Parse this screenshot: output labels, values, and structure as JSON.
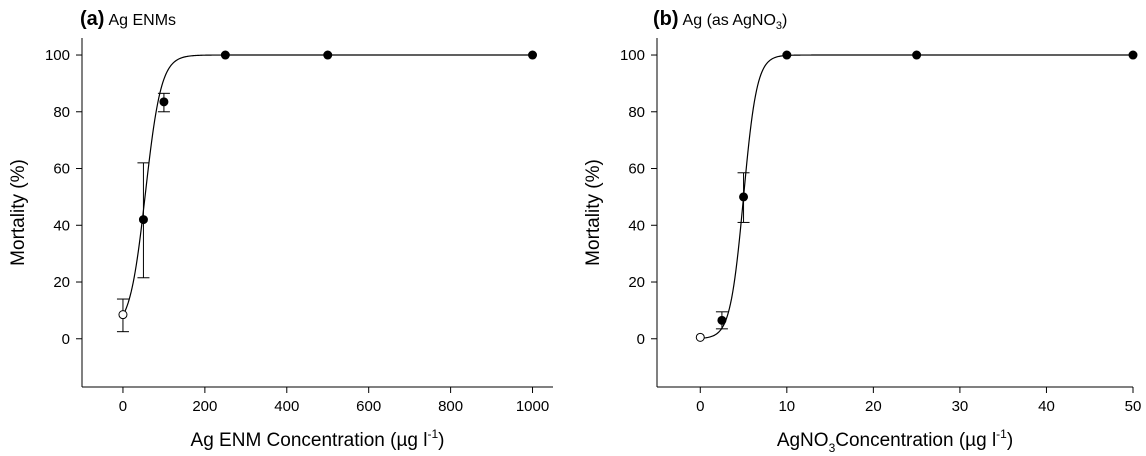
{
  "panels": [
    {
      "letter": "(a)",
      "subtitle": "Ag ENMs"
    },
    {
      "letter": "(b)",
      "subtitle": "Ag (as AgNO",
      "subtitle_sub": "3",
      "subtitle_end": ")"
    }
  ],
  "chart_data": [
    {
      "type": "scatter",
      "title": "(a) Ag ENMs",
      "xlabel": "Ag ENM Concentration (µg l-1)",
      "ylabel": "Mortality (%)",
      "xlim": [
        -100,
        1050
      ],
      "ylim": [
        -17,
        106
      ],
      "xticks": [
        "0",
        "200",
        "400",
        "600",
        "800",
        "1000"
      ],
      "yticks": [
        "0",
        "20",
        "40",
        "60",
        "80",
        "100"
      ],
      "grid": false,
      "points": [
        {
          "x": 0,
          "y": 8.5,
          "err_low": 6,
          "err_high": 5.5,
          "marker": "open"
        },
        {
          "x": 50,
          "y": 42,
          "err_low": 20.5,
          "err_high": 20,
          "marker": "filled"
        },
        {
          "x": 100,
          "y": 83.5,
          "err_low": 3.5,
          "err_high": 3,
          "marker": "filled"
        },
        {
          "x": 250,
          "y": 100,
          "marker": "filled"
        },
        {
          "x": 500,
          "y": 100,
          "marker": "filled"
        },
        {
          "x": 1000,
          "y": 100,
          "marker": "filled"
        }
      ],
      "curve": {
        "form": "logistic",
        "base": 3,
        "top": 100,
        "ec50": 55,
        "slope": 0.052
      }
    },
    {
      "type": "scatter",
      "title": "(b) Ag (as AgNO3)",
      "xlabel": "AgNO3Concentration (µg l-1)",
      "ylabel": "Mortality (%)",
      "xlim": [
        -5,
        50
      ],
      "ylim": [
        -17,
        106
      ],
      "xticks": [
        "0",
        "10",
        "20",
        "30",
        "40",
        "50"
      ],
      "yticks": [
        "0",
        "20",
        "40",
        "60",
        "80",
        "100"
      ],
      "grid": false,
      "points": [
        {
          "x": 0,
          "y": 0.5,
          "marker": "open"
        },
        {
          "x": 2.5,
          "y": 6.5,
          "err_low": 3,
          "err_high": 3,
          "marker": "filled"
        },
        {
          "x": 5,
          "y": 50,
          "err_low": 9,
          "err_high": 8.5,
          "marker": "filled"
        },
        {
          "x": 10,
          "y": 100,
          "marker": "filled"
        },
        {
          "x": 25,
          "y": 100,
          "marker": "filled"
        },
        {
          "x": 50,
          "y": 100,
          "marker": "filled"
        }
      ],
      "curve": {
        "form": "logistic",
        "base": 0,
        "top": 100,
        "ec50": 5,
        "slope": 1.3
      }
    }
  ],
  "axis_text": [
    {
      "xlabel_main": "Ag ENM Concentration (µg l",
      "xlabel_sup": "-1",
      "xlabel_sub": "",
      "xlabel_rest": "",
      "xlabel_end": ")",
      "ylabel": "Mortality (%)"
    },
    {
      "xlabel_main": "AgNO",
      "xlabel_sup": "-1",
      "xlabel_sub": "3",
      "xlabel_rest": "Concentration (µg l",
      "xlabel_end": ")",
      "ylabel": "Mortality (%)"
    }
  ]
}
